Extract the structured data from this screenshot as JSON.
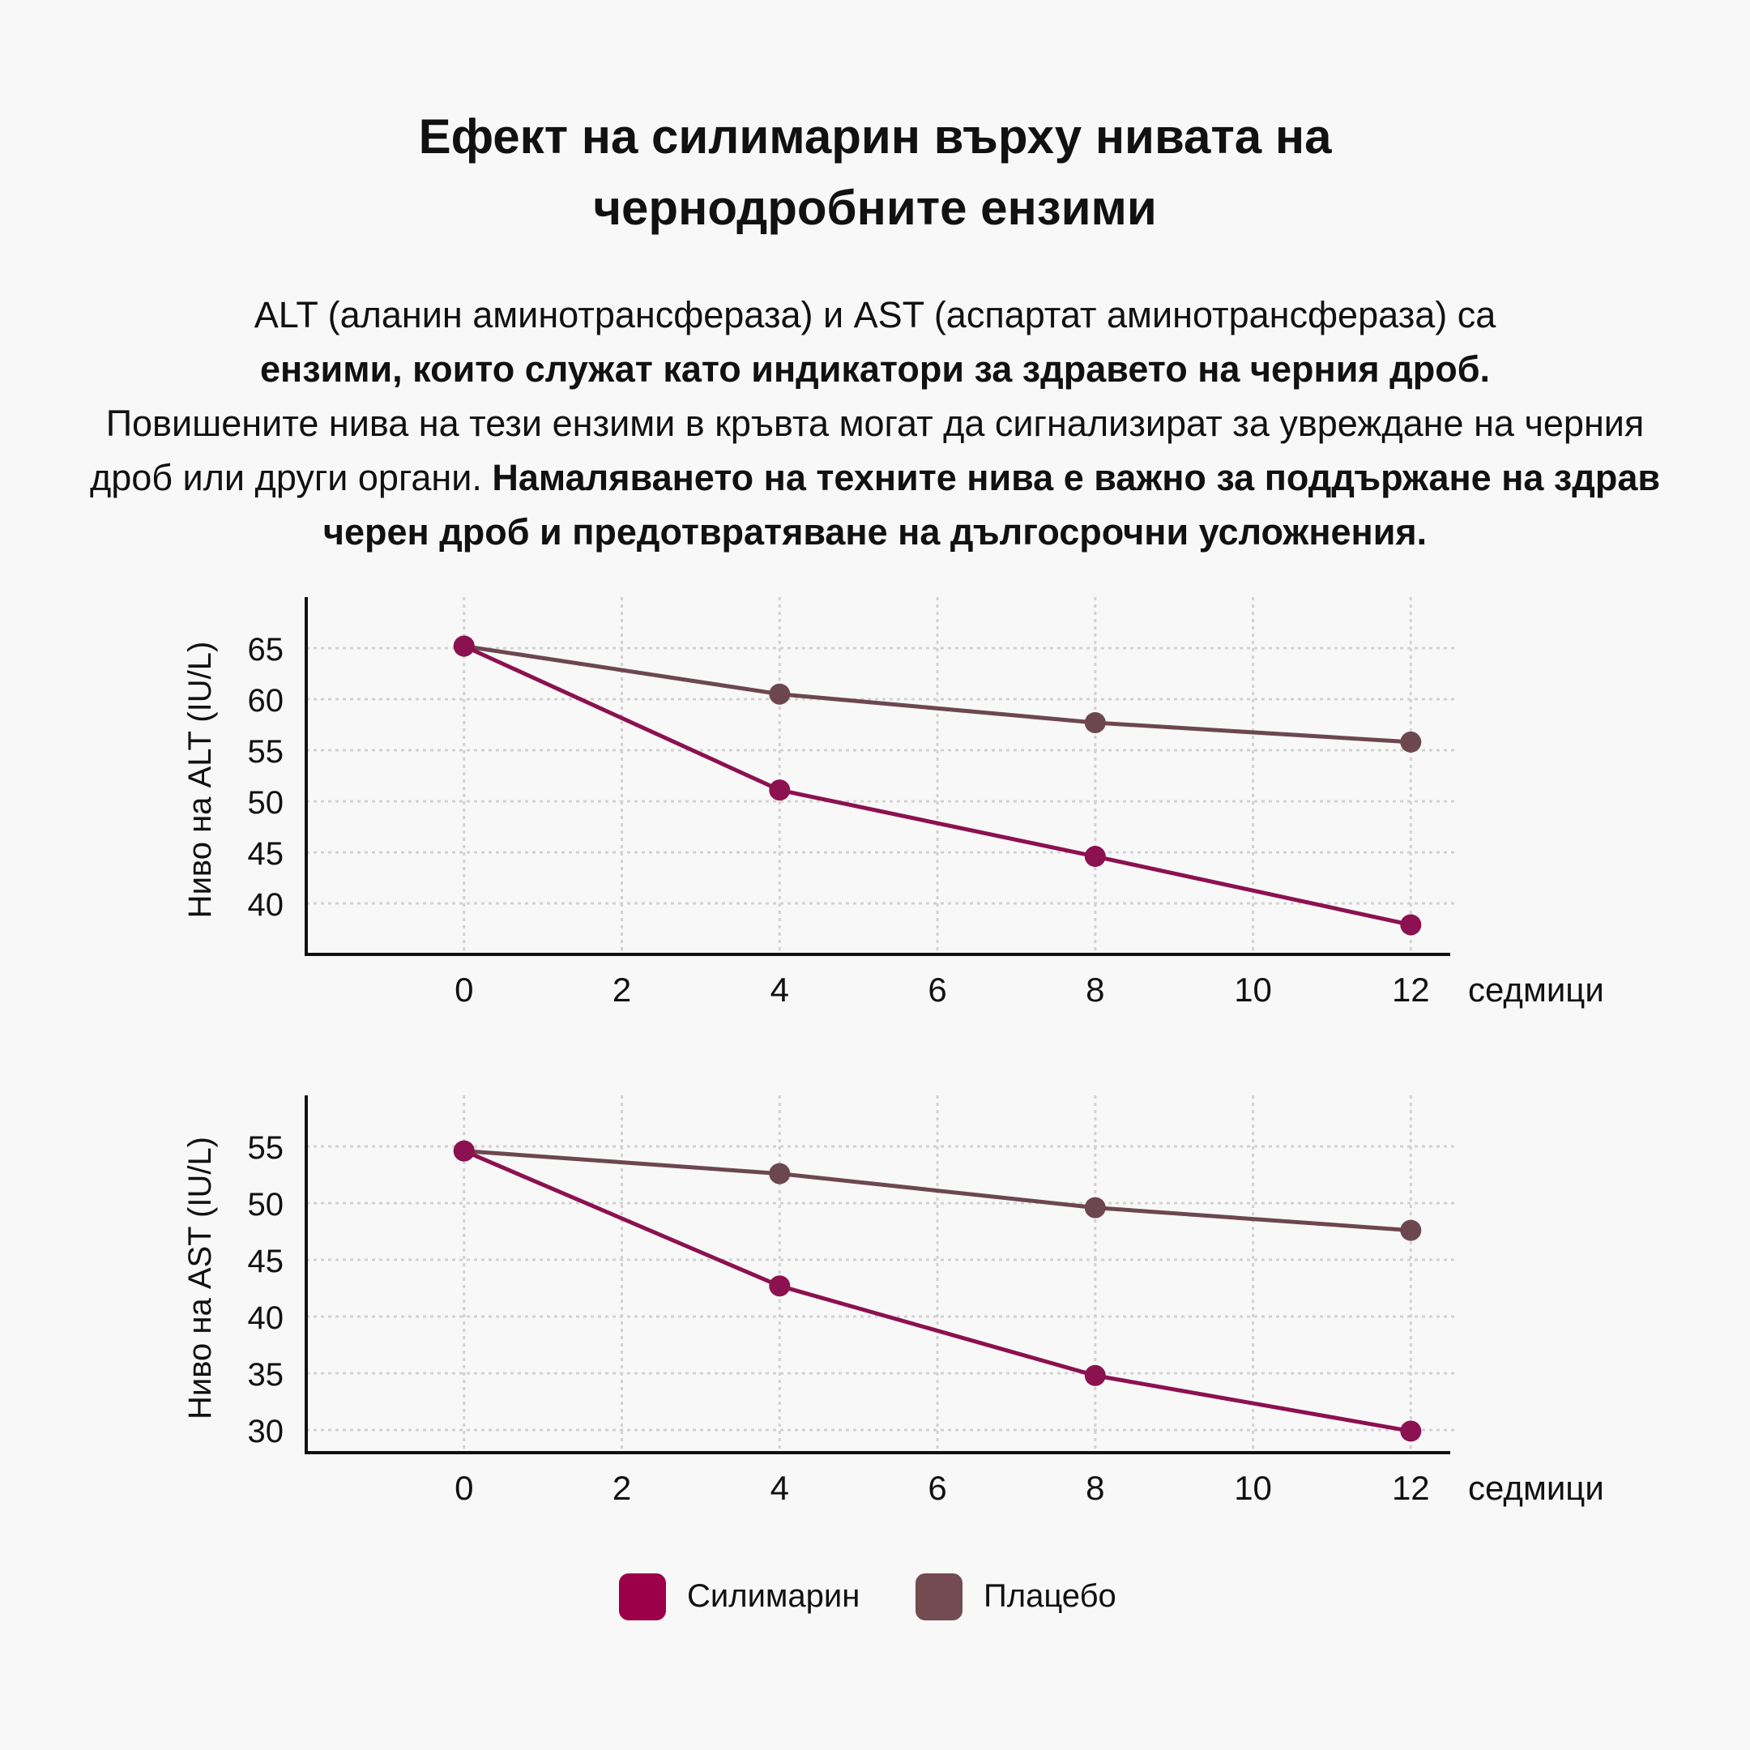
{
  "title": {
    "line1": "Ефект на силимарин върху нивата на",
    "line2": "чернодробните ензими"
  },
  "intro": {
    "p1": "ALT (аланин аминотрансфераза) и AST (аспартат аминотрансфераза) са",
    "p2_bold": "ензими, които служат като индикатори за здравето на черния дроб.",
    "p3": "Повишените нива на тези ензими в кръвта могат да сигнализират за увреждане на черния дроб или други органи.",
    "p4_bold": "Намаляването на техните нива е важно за поддържане на здрав черен дроб и предотвратяване на дългосрочни усложнения."
  },
  "legend": [
    {
      "name": "Силимарин",
      "color": "#9b0048"
    },
    {
      "name": "Плацебо",
      "color": "#744a53"
    }
  ],
  "chart_data": [
    {
      "type": "line",
      "xlabel": "седмици",
      "ylabel": "Ниво на ALT (IU/L)",
      "x_ticks": [
        0,
        2,
        4,
        6,
        8,
        10,
        12
      ],
      "y_ticks": [
        40,
        45,
        50,
        55,
        60,
        65
      ],
      "xlim": [
        -2,
        12.5
      ],
      "ylim": [
        35,
        70
      ],
      "grid": true,
      "series": [
        {
          "name": "Силимарин",
          "color": "#8c1150",
          "x": [
            0,
            4,
            8,
            12
          ],
          "y": [
            65.2,
            51.1,
            44.6,
            37.9
          ]
        },
        {
          "name": "Плацебо",
          "color": "#6d4750",
          "x": [
            0,
            4,
            8,
            12
          ],
          "y": [
            65.2,
            60.5,
            57.7,
            55.8
          ]
        }
      ]
    },
    {
      "type": "line",
      "xlabel": "седмици",
      "ylabel": "Ниво на AST (IU/L)",
      "x_ticks": [
        0,
        2,
        4,
        6,
        8,
        10,
        12
      ],
      "y_ticks": [
        30,
        35,
        40,
        45,
        50,
        55
      ],
      "xlim": [
        -2,
        12.5
      ],
      "ylim": [
        28,
        59.5
      ],
      "grid": true,
      "series": [
        {
          "name": "Силимарин",
          "color": "#8c1150",
          "x": [
            0,
            4,
            8,
            12
          ],
          "y": [
            54.6,
            42.7,
            34.8,
            29.9
          ]
        },
        {
          "name": "Плацебо",
          "color": "#6d4750",
          "x": [
            0,
            4,
            8,
            12
          ],
          "y": [
            54.6,
            52.6,
            49.6,
            47.6
          ]
        }
      ]
    }
  ]
}
